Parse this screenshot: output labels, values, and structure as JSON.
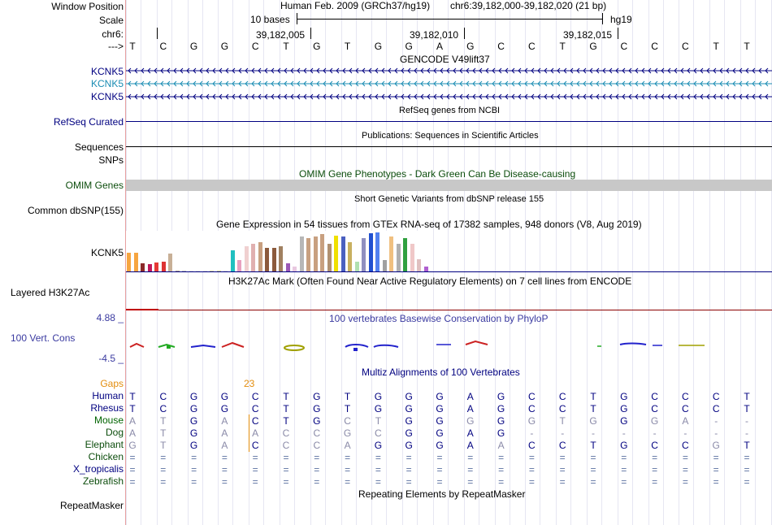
{
  "labels": {
    "window_position": "Window Position",
    "scale": "Scale",
    "chr": "chr6:",
    "arrow": "--->",
    "kcnk5_1": "KCNK5",
    "kcnk5_2": "KCNK5",
    "kcnk5_3": "KCNK5",
    "refseq": "RefSeq Curated",
    "sequences": "Sequences",
    "snps": "SNPs",
    "omim": "OMIM Genes",
    "common_dbsnp": "Common dbSNP(155)",
    "kcnk5_gtex": "KCNK5",
    "layered": "Layered H3K27Ac",
    "cons_max": "4.88 _",
    "cons_label": "100 Vert. Cons",
    "cons_min": "-4.5 _",
    "gaps": "Gaps",
    "human": "Human",
    "rhesus": "Rhesus",
    "mouse": "Mouse",
    "dog": "Dog",
    "elephant": "Elephant",
    "chicken": "Chicken",
    "x_tropicalis": "X_tropicalis",
    "zebrafish": "Zebrafish",
    "repeatmasker": "RepeatMasker"
  },
  "header": {
    "assembly": "Human Feb. 2009 (GRCh37/hg19)",
    "position": "chr6:39,182,000-39,182,020 (21 bp)",
    "scale_text": "10 bases",
    "genome": "hg19",
    "coord1": "39,182,005",
    "coord2": "39,182,010",
    "coord3": "39,182,015"
  },
  "sequence": [
    "T",
    "C",
    "G",
    "G",
    "C",
    "T",
    "G",
    "T",
    "G",
    "G",
    "A",
    "G",
    "C",
    "C",
    "T",
    "G",
    "C",
    "C",
    "C",
    "T",
    "T"
  ],
  "titles": {
    "gencode": "GENCODE V49lift37",
    "refseq": "RefSeq genes from NCBI",
    "publications": "Publications: Sequences in Scientific Articles",
    "omim": "OMIM Gene Phenotypes - Dark Green Can Be Disease-causing",
    "dbsnp": "Short Genetic Variants from dbSNP release 155",
    "gtex": "Gene Expression in 54 tissues from GTEx RNA-seq of 17382 samples, 948 donors (V8, Aug 2019)",
    "h3k27ac": "H3K27Ac Mark (Often Found Near Active Regulatory Elements) on 7 cell lines from ENCODE",
    "phylop": "100 vertebrates Basewise Conservation by PhyloP",
    "multiz": "Multiz Alignments of 100 Vertebrates",
    "repeat": "Repeating Elements by RepeatMasker"
  },
  "gaps_value": "23",
  "alignments": {
    "human": [
      "T",
      "C",
      "G",
      "G",
      "C",
      "T",
      "G",
      "T",
      "G",
      "G",
      "G",
      "A",
      "G",
      "C",
      "C",
      "T",
      "G",
      "C",
      "C",
      "C",
      "T"
    ],
    "rhesus": [
      "T",
      "C",
      "G",
      "G",
      "C",
      "T",
      "G",
      "T",
      "G",
      "G",
      "G",
      "A",
      "G",
      "C",
      "C",
      "T",
      "G",
      "C",
      "C",
      "C",
      "T"
    ],
    "mouse": [
      "A",
      "T",
      "G",
      "A",
      "C",
      "T",
      "G",
      "C",
      "T",
      "G",
      "G",
      "G",
      "G",
      "G",
      "T",
      "G",
      "G",
      "G",
      "A",
      "-",
      "-"
    ],
    "dog": [
      "A",
      "T",
      "G",
      "A",
      "A",
      "C",
      "C",
      "G",
      "C",
      "G",
      "G",
      "A",
      "G",
      "-",
      "-",
      "-",
      "-",
      "-",
      "-",
      "-",
      "-"
    ],
    "elephant": [
      "G",
      "T",
      "G",
      "A",
      "C",
      "C",
      "C",
      "A",
      "G",
      "G",
      "G",
      "A",
      "A",
      "C",
      "C",
      "T",
      "G",
      "C",
      "C",
      "G",
      "T"
    ],
    "chicken": [
      "=",
      "=",
      "=",
      "=",
      "=",
      "=",
      "=",
      "=",
      "=",
      "=",
      "=",
      "=",
      "=",
      "=",
      "=",
      "=",
      "=",
      "=",
      "=",
      "=",
      "="
    ],
    "x_tropicalis": [
      "=",
      "=",
      "=",
      "=",
      "=",
      "=",
      "=",
      "=",
      "=",
      "=",
      "=",
      "=",
      "=",
      "=",
      "=",
      "=",
      "=",
      "=",
      "=",
      "=",
      "="
    ],
    "zebrafish": [
      "=",
      "=",
      "=",
      "=",
      "=",
      "=",
      "=",
      "=",
      "=",
      "=",
      "=",
      "=",
      "=",
      "=",
      "=",
      "=",
      "=",
      "=",
      "=",
      "=",
      "="
    ]
  },
  "gtex": {
    "colors": [
      "#f6a540",
      "#f6a540",
      "#8b2a2a",
      "#c2185b",
      "#e53935",
      "#d33",
      "#c8b097",
      "#b0a090",
      "#c0c0c0",
      "#e0e0e0",
      "#e0e0e0",
      "#e0e0e0",
      "#d0d0a0",
      "#cfcf90",
      "#e0e0e0",
      "#20c0c0",
      "#e8a0c0",
      "#f0d0d0",
      "#e0b0b0",
      "#c8a080",
      "#8b5a3c",
      "#8b5a3c",
      "#a08060",
      "#9b59b6",
      "#e8c8e0",
      "#b7b7b7",
      "#c8a080",
      "#c8a080",
      "#c8a080",
      "#b09070",
      "#f0e000",
      "#4a5fc0",
      "#c8b060",
      "#b0e0b0",
      "#9090c0",
      "#2050d0",
      "#5080f0",
      "#a0a0a0",
      "#f0c080",
      "#b0b0b0",
      "#30a040",
      "#f0c8c8",
      "#e0c0c0",
      "#b060d0"
    ],
    "values": [
      0.48,
      0.48,
      0.2,
      0.18,
      0.22,
      0.25,
      0.45,
      0.02,
      0.02,
      0.02,
      0.02,
      0.02,
      0.02,
      0.02,
      0.02,
      0.55,
      0.3,
      0.65,
      0.7,
      0.75,
      0.6,
      0.6,
      0.65,
      0.2,
      0.12,
      0.9,
      0.85,
      0.9,
      0.95,
      0.7,
      0.92,
      0.9,
      0.75,
      0.25,
      0.85,
      0.98,
      1.0,
      0.3,
      0.9,
      0.7,
      0.85,
      0.7,
      0.32,
      0.12
    ]
  },
  "colors": {
    "navy": "#000080",
    "gencode_alt": "#1a8cb3",
    "omim_green": "#0c4d0c",
    "omim_bar": "#c8c8c8",
    "phylop_title": "#3a3aa0",
    "h3k27ac_line": "#8b0000",
    "gaps_orange": "#e38d0d"
  }
}
